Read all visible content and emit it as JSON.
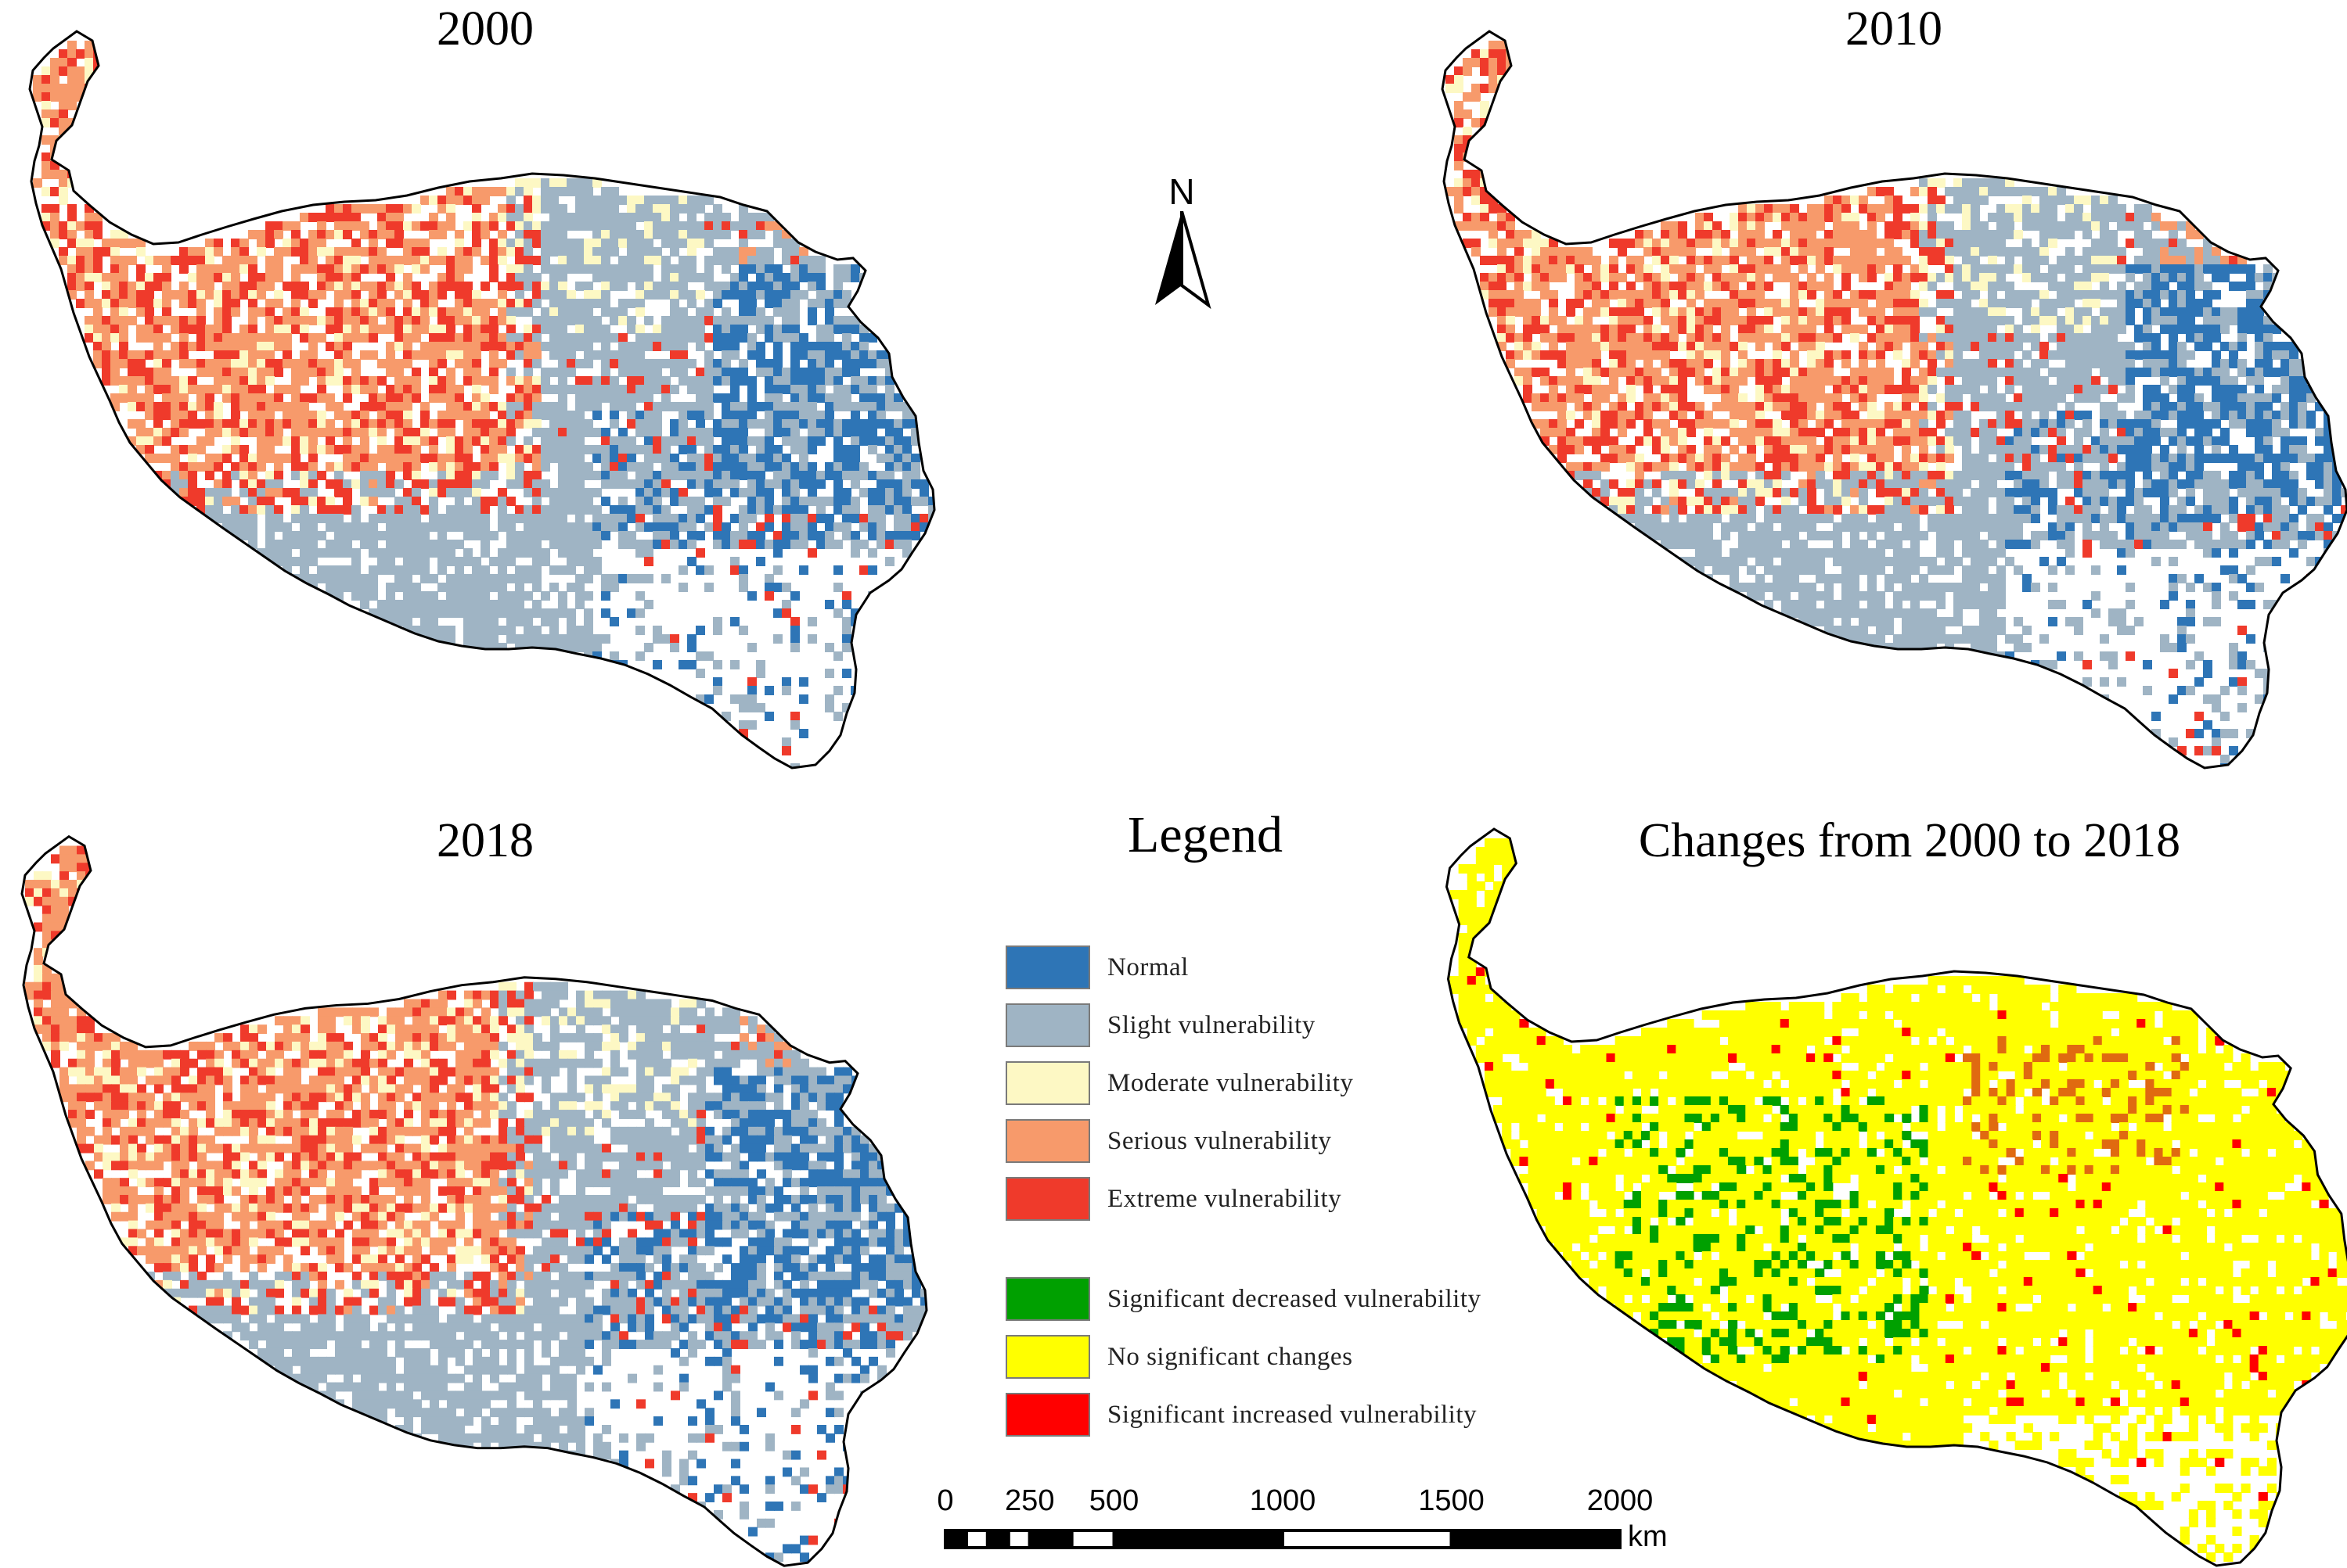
{
  "panels": [
    {
      "title": "2000",
      "type": "vulnerability"
    },
    {
      "title": "2010",
      "type": "vulnerability"
    },
    {
      "title": "2018",
      "type": "vulnerability"
    },
    {
      "title": "Changes from 2000 to 2018",
      "type": "change"
    }
  ],
  "north_arrow": {
    "label": "N"
  },
  "legend": {
    "title": "Legend",
    "vulnerability_classes": [
      {
        "label": "Normal",
        "color": "#2e75b6"
      },
      {
        "label": "Slight vulnerability",
        "color": "#9fb4c4"
      },
      {
        "label": "Moderate vulnerability",
        "color": "#fdf8c4"
      },
      {
        "label": "Serious vulnerability",
        "color": "#f79a6b"
      },
      {
        "label": "Extreme vulnerability",
        "color": "#ef3a2b"
      }
    ],
    "change_classes": [
      {
        "label": "Significant decreased vulnerability",
        "color": "#00a000"
      },
      {
        "label": "No significant changes",
        "color": "#ffff00"
      },
      {
        "label": "Significant increased vulnerability",
        "color": "#ff0000"
      }
    ]
  },
  "scale_bar": {
    "ticks": [
      "0",
      "250",
      "500",
      "1000",
      "1500",
      "2000"
    ],
    "unit": "km"
  }
}
